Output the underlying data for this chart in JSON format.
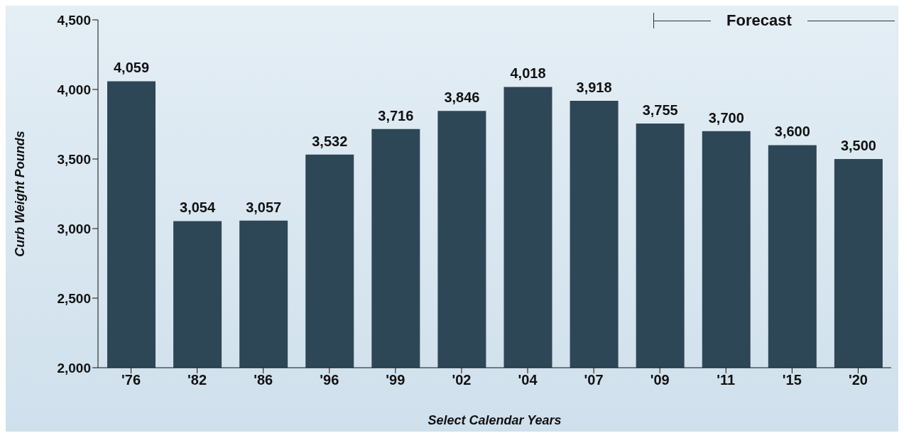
{
  "chart_data": {
    "type": "bar",
    "ylabel": "Curb Weight Pounds",
    "xlabel": "Select Calendar Years",
    "categories": [
      "'76",
      "'82",
      "'86",
      "'96",
      "'99",
      "'02",
      "'04",
      "'07",
      "'09",
      "'11",
      "'15",
      "'20"
    ],
    "values": [
      4059,
      3054,
      3057,
      3532,
      3716,
      3846,
      4018,
      3918,
      3755,
      3700,
      3600,
      3500
    ],
    "value_labels": [
      "4,059",
      "3,054",
      "3,057",
      "3,532",
      "3,716",
      "3,846",
      "4,018",
      "3,918",
      "3,755",
      "3,700",
      "3,600",
      "3,500"
    ],
    "color": "#2e4757",
    "ylim": [
      2000,
      4500
    ],
    "yticks": [
      {
        "value": 2000,
        "label": "2,000"
      },
      {
        "value": 2500,
        "label": "2,500"
      },
      {
        "value": 3000,
        "label": "3,000"
      },
      {
        "value": 3500,
        "label": "3,500"
      },
      {
        "value": 4000,
        "label": "4,000"
      },
      {
        "value": 4500,
        "label": "4,500"
      }
    ],
    "grid": false,
    "annotations": [
      "Forecast"
    ]
  }
}
